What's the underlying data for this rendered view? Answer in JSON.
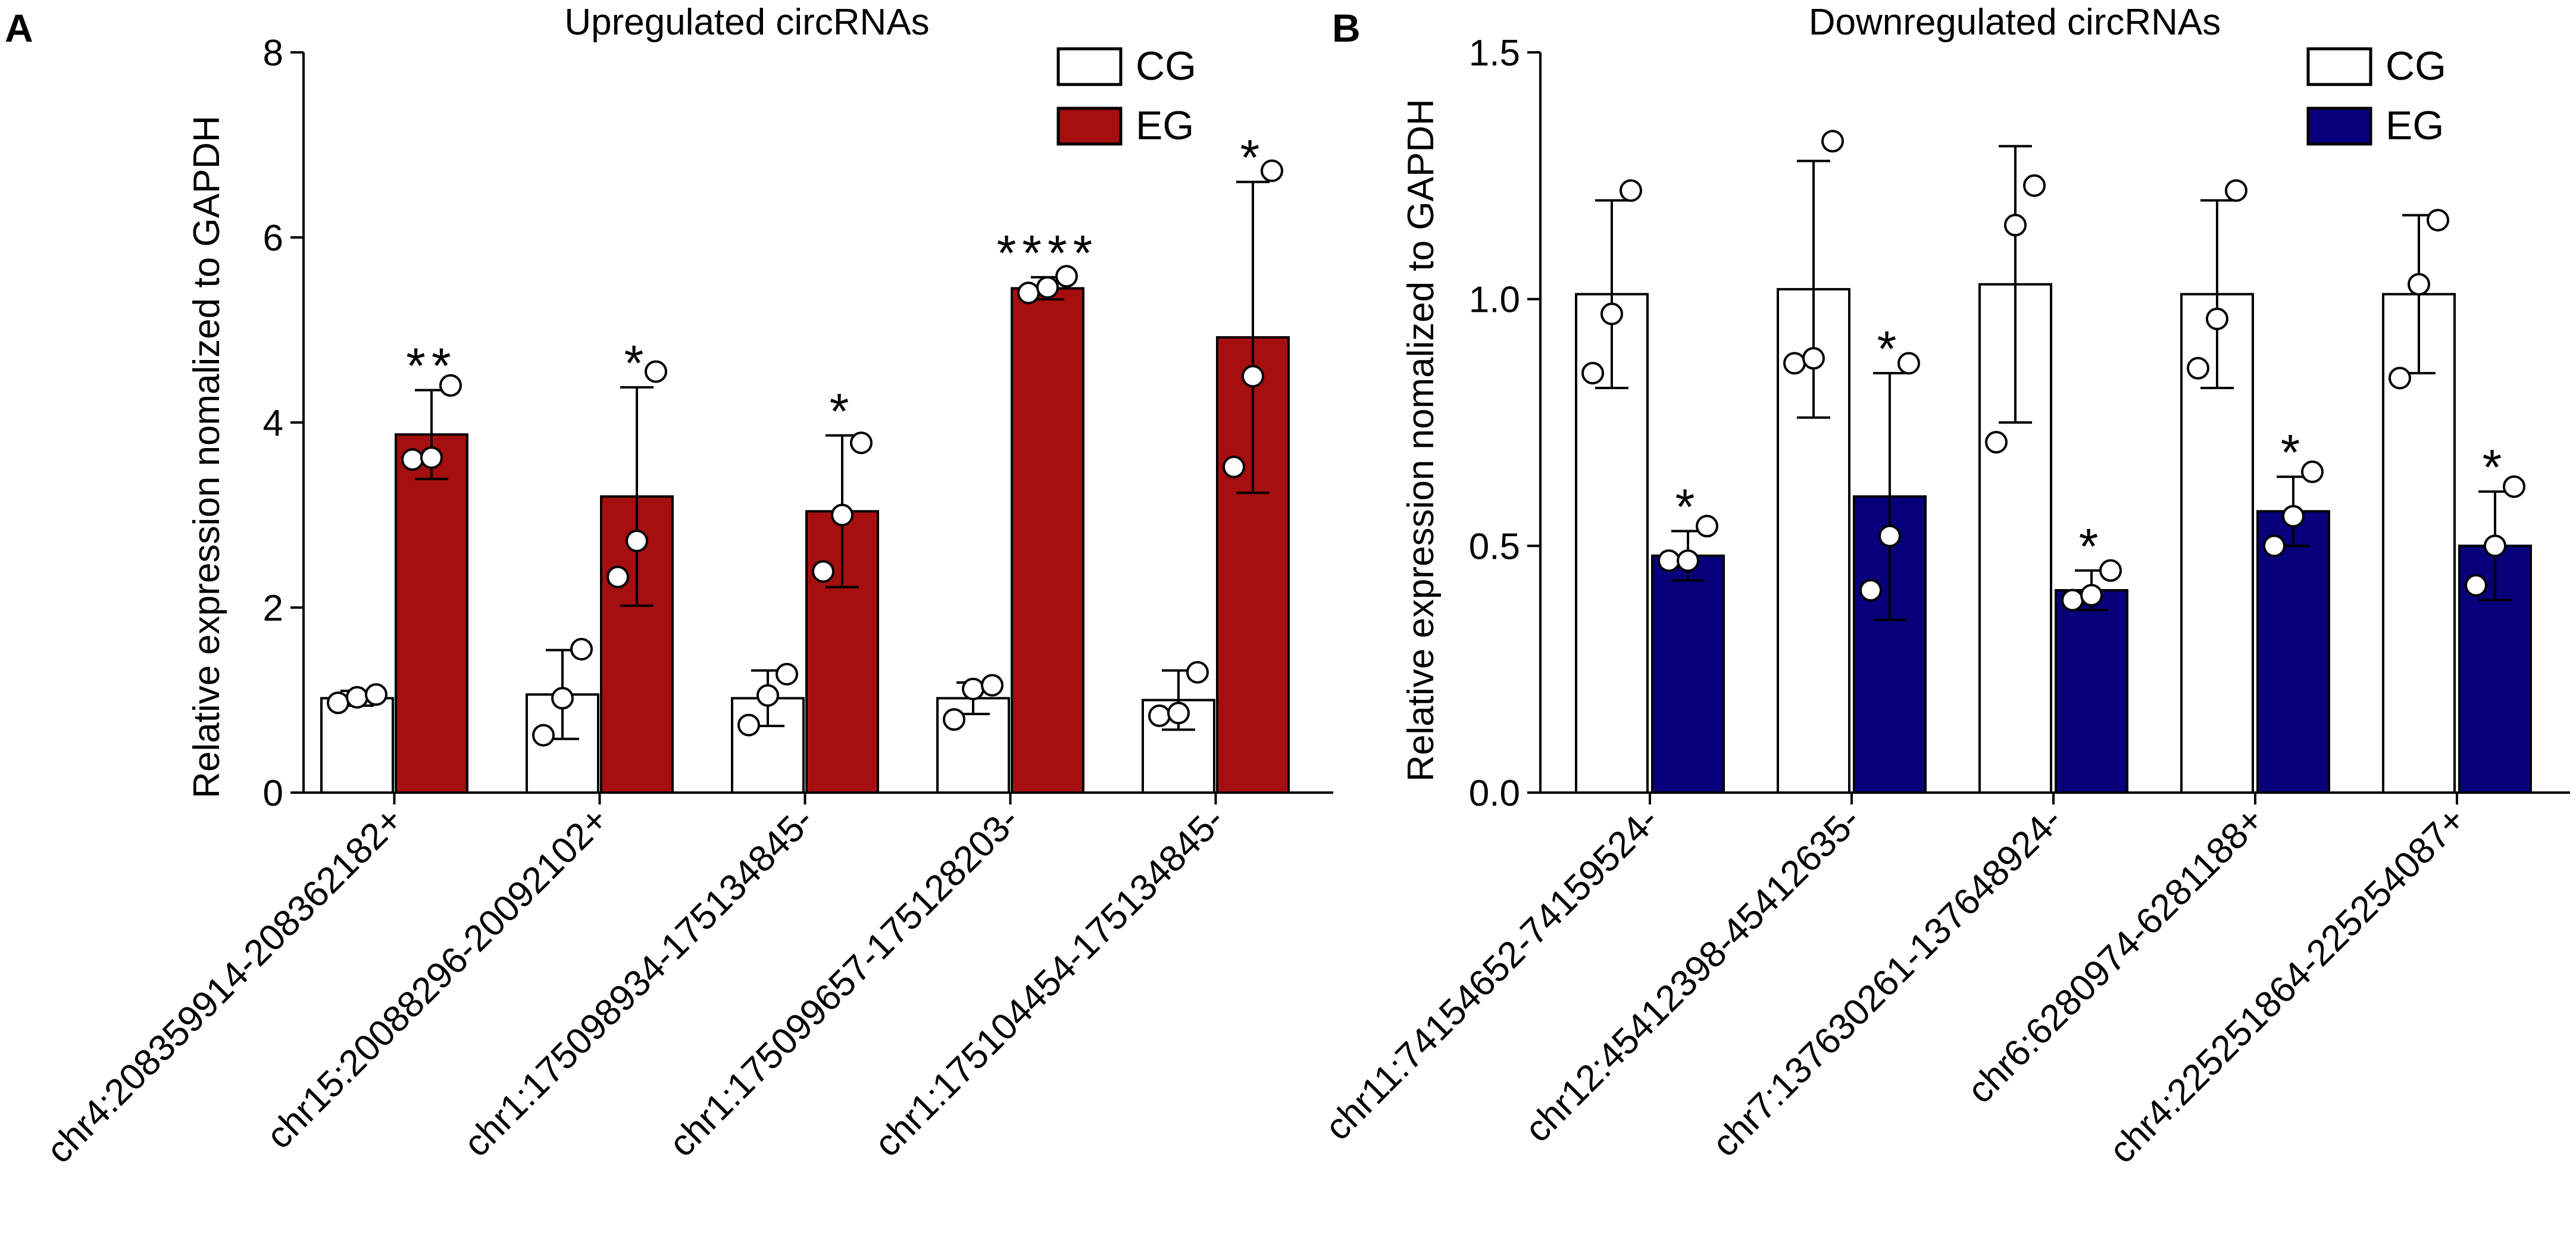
{
  "chart_data": [
    {
      "panel": "A",
      "type": "bar",
      "title": "Upregulated circRNAs",
      "ylabel": "Relative expression nomalized to GAPDH",
      "xlabel": "",
      "ylim": [
        0,
        8
      ],
      "yticks": [
        "0",
        "2",
        "4",
        "6",
        "8"
      ],
      "ytick_values": [
        0,
        2,
        4,
        6,
        8
      ],
      "categories": [
        "chr4:208359914-208362182+",
        "chr15:20088296-20092102+",
        "chr1:175098934-175134845-",
        "chr1:175099657-175128203-",
        "chr1:175104454-175134845-"
      ],
      "legend": [
        "CG",
        "EG"
      ],
      "colors": {
        "CG": "#ffffff",
        "EG": "#a50f0f"
      },
      "series": [
        {
          "name": "CG",
          "values": [
            1.02,
            1.06,
            1.02,
            1.02,
            1.0
          ],
          "sd": [
            0.08,
            0.48,
            0.3,
            0.17,
            0.32
          ],
          "points": [
            [
              0.97,
              1.03,
              1.06
            ],
            [
              0.62,
              1.02,
              1.55
            ],
            [
              0.73,
              1.05,
              1.28
            ],
            [
              0.79,
              1.12,
              1.16
            ],
            [
              0.83,
              0.86,
              1.3
            ]
          ]
        },
        {
          "name": "EG",
          "values": [
            3.87,
            3.2,
            3.04,
            5.45,
            4.92
          ],
          "sd": [
            0.48,
            1.18,
            0.82,
            0.12,
            1.68
          ],
          "points": [
            [
              3.6,
              3.62,
              4.4
            ],
            [
              2.33,
              2.72,
              4.55
            ],
            [
              2.39,
              3.0,
              3.78
            ],
            [
              5.4,
              5.46,
              5.58
            ],
            [
              3.52,
              4.5,
              6.72
            ]
          ]
        }
      ],
      "significance": [
        "**",
        "*",
        "*",
        "****",
        "*"
      ]
    },
    {
      "panel": "B",
      "type": "bar",
      "title": "Downregulated circRNAs",
      "ylabel": "Relative expression nomalized to GAPDH",
      "xlabel": "",
      "ylim": [
        0,
        1.5
      ],
      "yticks": [
        "0.0",
        "0.5",
        "1.0",
        "1.5"
      ],
      "ytick_values": [
        0,
        0.5,
        1.0,
        1.5
      ],
      "categories": [
        "chr11:74154652-74159524-",
        "chr12:45412398-45412635-",
        "chr7:137630261-137648924-",
        "chr6:6280974-6281188+",
        "chr4:225251864-225254087+"
      ],
      "legend": [
        "CG",
        "EG"
      ],
      "colors": {
        "CG": "#ffffff",
        "EG": "#08007a"
      },
      "series": [
        {
          "name": "CG",
          "values": [
            1.01,
            1.02,
            1.03,
            1.01,
            1.01
          ],
          "sd": [
            0.19,
            0.26,
            0.28,
            0.19,
            0.16
          ],
          "points": [
            [
              0.85,
              0.97,
              1.22
            ],
            [
              0.87,
              0.88,
              1.32
            ],
            [
              0.71,
              1.15,
              1.23
            ],
            [
              0.86,
              0.96,
              1.22
            ],
            [
              0.84,
              1.03,
              1.16
            ]
          ]
        },
        {
          "name": "EG",
          "values": [
            0.48,
            0.6,
            0.41,
            0.57,
            0.5
          ],
          "sd": [
            0.05,
            0.25,
            0.04,
            0.07,
            0.11
          ],
          "points": [
            [
              0.47,
              0.47,
              0.54
            ],
            [
              0.41,
              0.52,
              0.87
            ],
            [
              0.39,
              0.4,
              0.45
            ],
            [
              0.5,
              0.56,
              0.65
            ],
            [
              0.42,
              0.5,
              0.62
            ]
          ]
        }
      ],
      "significance": [
        "*",
        "*",
        "*",
        "*",
        "*"
      ]
    }
  ]
}
